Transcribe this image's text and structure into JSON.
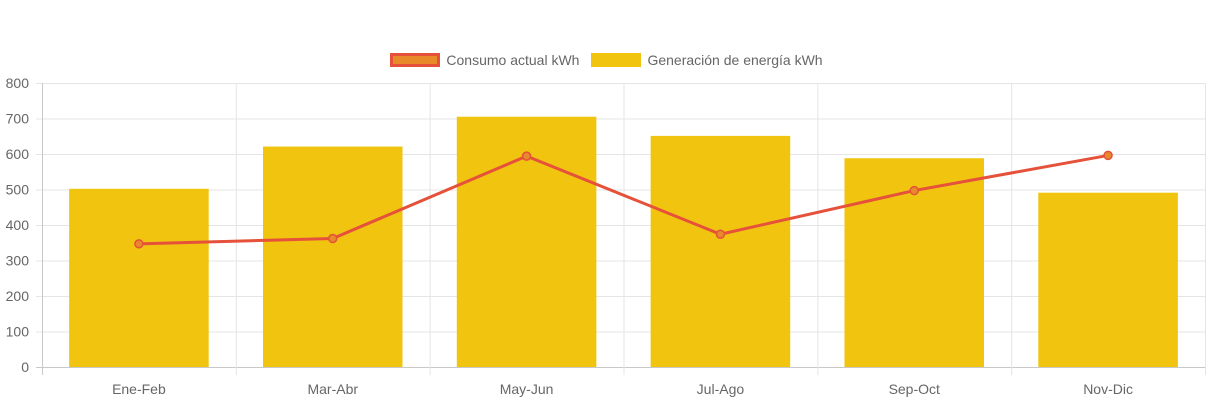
{
  "chart_data": {
    "type": "bar",
    "categories": [
      "Ene-Feb",
      "Mar-Abr",
      "May-Jun",
      "Jul-Ago",
      "Sep-Oct",
      "Nov-Dic"
    ],
    "series": [
      {
        "name": "Consumo actual kWh",
        "type": "line",
        "color": "#e5513a",
        "marker_color": "#e8892b",
        "values": [
          347,
          362,
          594,
          374,
          497,
          596
        ]
      },
      {
        "name": "Generación de energía kWh",
        "type": "bar",
        "color": "#f0c40f",
        "values": [
          502,
          621,
          705,
          651,
          588,
          491
        ]
      }
    ],
    "ylim": [
      0,
      800
    ],
    "yticks": [
      "0",
      "100",
      "200",
      "300",
      "400",
      "500",
      "600",
      "700",
      "800"
    ],
    "grid": true,
    "legend_position": "top-center"
  },
  "legend": {
    "items": [
      {
        "label": "Consumo actual kWh",
        "fill": "#e8892b",
        "border": "#e5513a"
      },
      {
        "label": "Generación de energía kWh",
        "fill": "#f0c40f",
        "border": "#f0c40f"
      }
    ]
  }
}
